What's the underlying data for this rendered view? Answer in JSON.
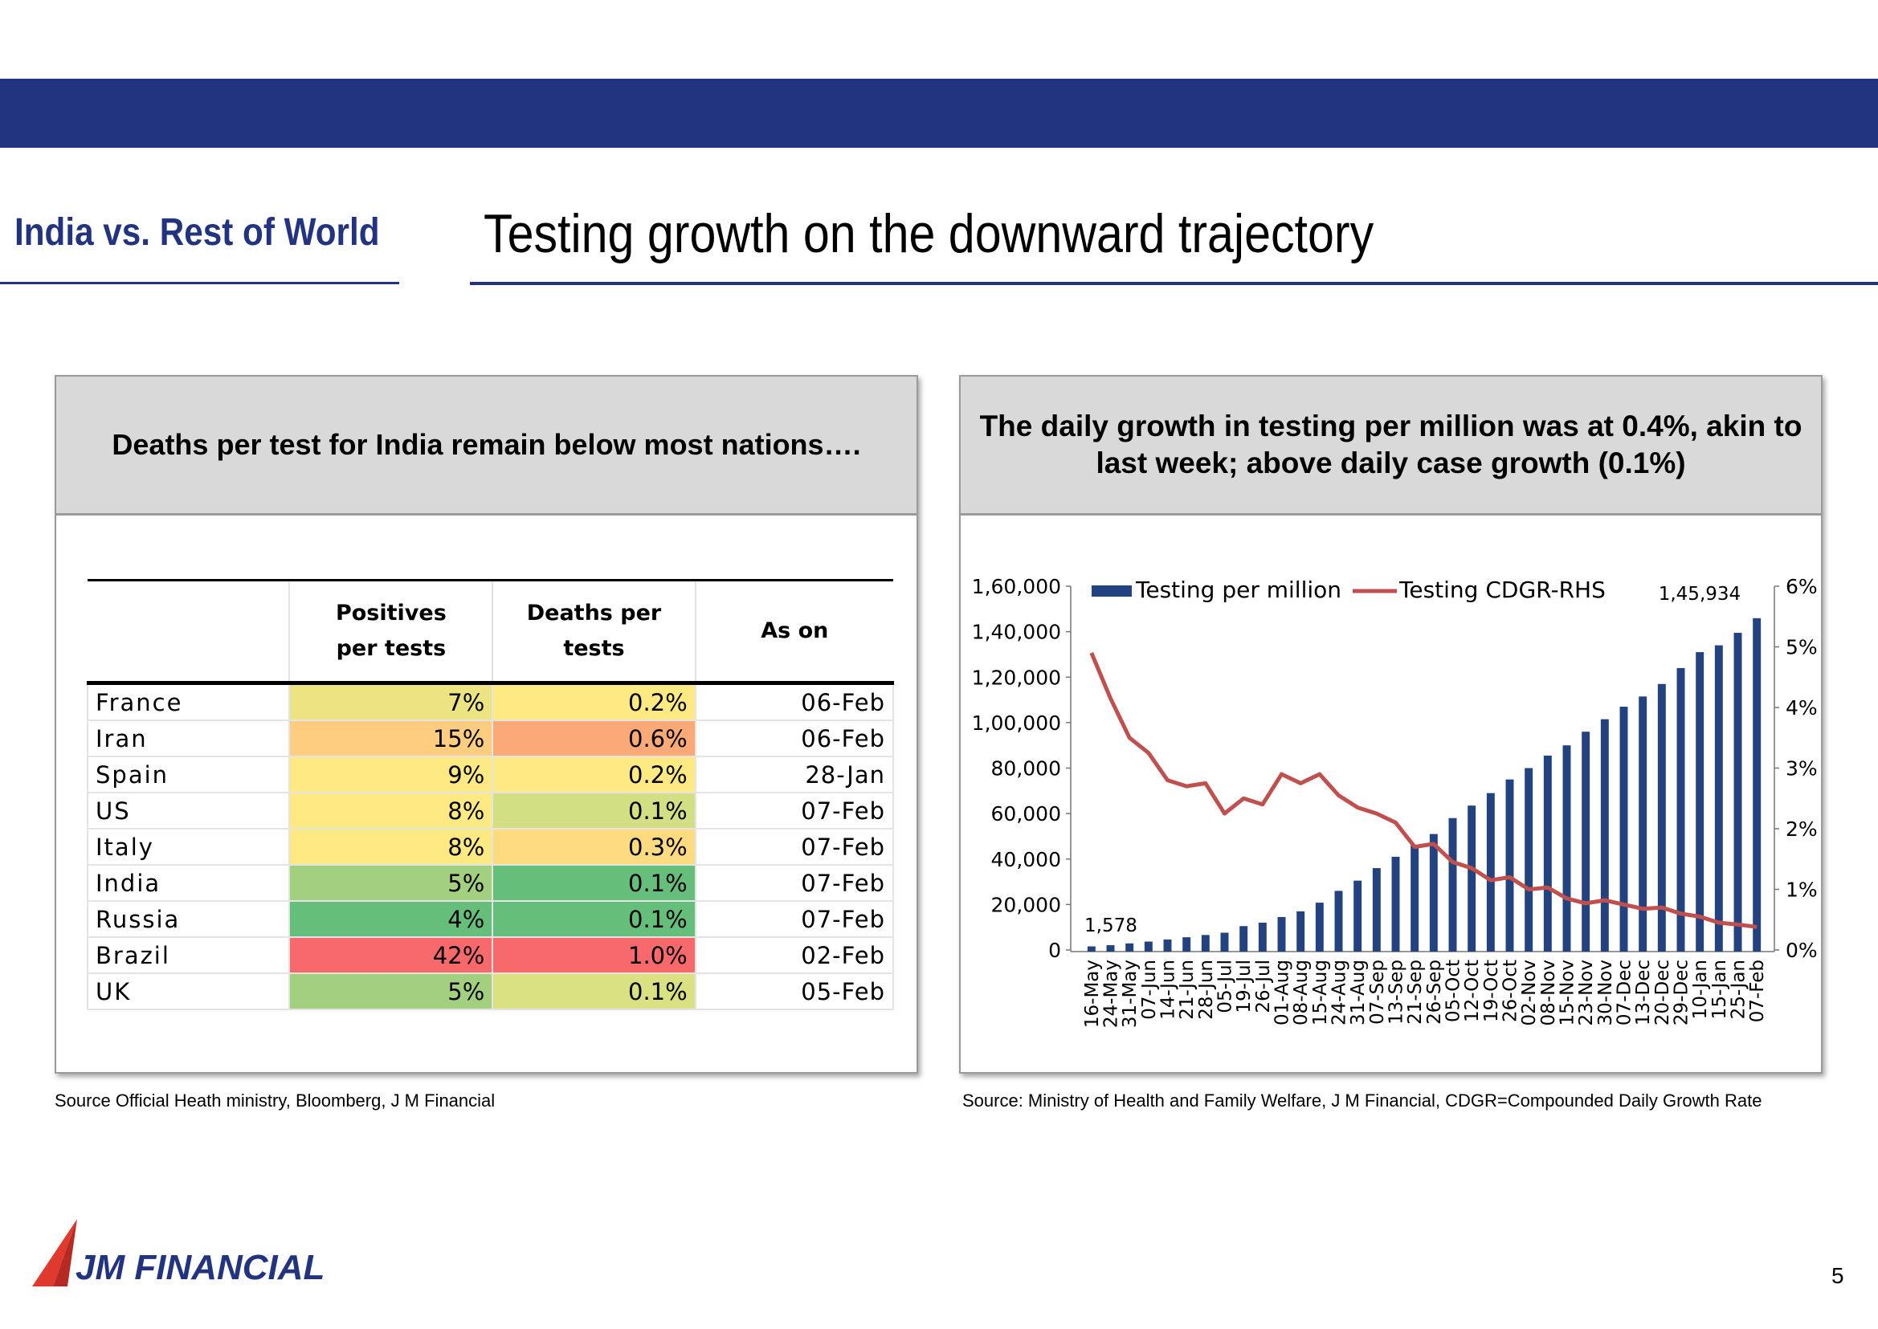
{
  "header": {
    "section_title": "India vs. Rest of World",
    "headline": "Testing growth on the downward trajectory"
  },
  "left_panel": {
    "title": "Deaths per test for India remain below most nations….",
    "table": {
      "columns": [
        "",
        "Positives per tests",
        "Deaths per tests",
        "As on"
      ],
      "rows": [
        {
          "country": "France",
          "positives": "7%",
          "deaths": "0.2%",
          "as_on": "06-Feb",
          "pos_color": "#ece383",
          "death_color": "#fee983"
        },
        {
          "country": "Iran",
          "positives": "15%",
          "deaths": "0.6%",
          "as_on": "06-Feb",
          "pos_color": "#fecd80",
          "death_color": "#fca978"
        },
        {
          "country": "Spain",
          "positives": "9%",
          "deaths": "0.2%",
          "as_on": "28-Jan",
          "pos_color": "#fee983",
          "death_color": "#fee983"
        },
        {
          "country": "US",
          "positives": "8%",
          "deaths": "0.1%",
          "as_on": "07-Feb",
          "pos_color": "#fee983",
          "death_color": "#d2df82"
        },
        {
          "country": "Italy",
          "positives": "8%",
          "deaths": "0.3%",
          "as_on": "07-Feb",
          "pos_color": "#fee983",
          "death_color": "#fedb81"
        },
        {
          "country": "India",
          "positives": "5%",
          "deaths": "0.1%",
          "as_on": "07-Feb",
          "pos_color": "#a2d07f",
          "death_color": "#66be7b"
        },
        {
          "country": "Russia",
          "positives": "4%",
          "deaths": "0.1%",
          "as_on": "07-Feb",
          "pos_color": "#66be7b",
          "death_color": "#66be7b"
        },
        {
          "country": "Brazil",
          "positives": "42%",
          "deaths": "1.0%",
          "as_on": "02-Feb",
          "pos_color": "#f8696b",
          "death_color": "#f8696b"
        },
        {
          "country": "UK",
          "positives": "5%",
          "deaths": "0.1%",
          "as_on": "05-Feb",
          "pos_color": "#a2d07f",
          "death_color": "#d9e182"
        }
      ]
    },
    "source": "Source Official Heath ministry, Bloomberg,  J M Financial"
  },
  "right_panel": {
    "title": "The daily growth in testing per million was at 0.4%, akin to last week; above daily case growth (0.1%)",
    "source": "Source: Ministry of Health and Family Welfare,  J M Financial, CDGR=Compounded Daily Growth Rate"
  },
  "chart_data": {
    "type": "bar",
    "categories": [
      "16-May",
      "24-May",
      "31-May",
      "07-Jun",
      "14-Jun",
      "21-Jun",
      "28-Jun",
      "05-Jul",
      "19-Jul",
      "26-Jul",
      "01-Aug",
      "08-Aug",
      "15-Aug",
      "24-Aug",
      "31-Aug",
      "07-Sep",
      "13-Sep",
      "21-Sep",
      "26-Sep",
      "05-Oct",
      "12-Oct",
      "19-Oct",
      "26-Oct",
      "02-Nov",
      "08-Nov",
      "15-Nov",
      "23-Nov",
      "30-Nov",
      "07-Dec",
      "13-Dec",
      "20-Dec",
      "29-Dec",
      "10-Jan",
      "15-Jan",
      "25-Jan",
      "07-Feb"
    ],
    "series": [
      {
        "name": "Testing per million",
        "type": "bar",
        "axis": "left",
        "color": "#22437f",
        "values": [
          1578,
          2100,
          2900,
          3700,
          4600,
          5600,
          6600,
          7600,
          10500,
          12000,
          14500,
          17000,
          20800,
          26000,
          30500,
          36000,
          41000,
          46000,
          51000,
          58000,
          63500,
          69000,
          75000,
          80000,
          85500,
          90000,
          96000,
          101500,
          107000,
          111500,
          117000,
          124000,
          131000,
          134000,
          139500,
          145934
        ]
      },
      {
        "name": "Testing CDGR-RHS",
        "type": "line",
        "axis": "right",
        "color": "#c0504d",
        "values": [
          4.9,
          4.15,
          3.5,
          3.25,
          2.8,
          2.7,
          2.75,
          2.25,
          2.5,
          2.4,
          2.9,
          2.75,
          2.9,
          2.55,
          2.35,
          2.25,
          2.1,
          1.7,
          1.75,
          1.45,
          1.35,
          1.15,
          1.2,
          1.0,
          1.03,
          0.85,
          0.77,
          0.82,
          0.75,
          0.68,
          0.7,
          0.6,
          0.55,
          0.45,
          0.42,
          0.38
        ]
      }
    ],
    "ylim": [
      0,
      160000
    ],
    "y_ticks": [
      "0",
      "20,000",
      "40,000",
      "60,000",
      "80,000",
      "1,00,000",
      "1,20,000",
      "1,40,000",
      "1,60,000"
    ],
    "y2lim": [
      0,
      6
    ],
    "y2_ticks": [
      "0%",
      "1%",
      "2%",
      "3%",
      "4%",
      "5%",
      "6%"
    ],
    "data_labels": {
      "first": "1,578",
      "last": "1,45,934"
    },
    "legend": "top",
    "grid": false
  },
  "footer": {
    "logo_text": "JM FINANCIAL",
    "page_number": "5"
  }
}
